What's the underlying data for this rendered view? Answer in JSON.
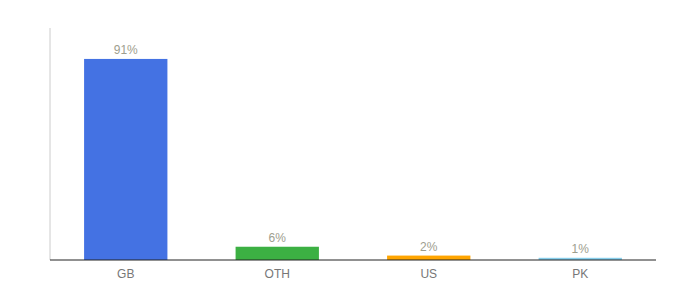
{
  "chart_data": {
    "type": "bar",
    "categories": [
      "GB",
      "OTH",
      "US",
      "PK"
    ],
    "values": [
      91,
      6,
      2,
      1
    ],
    "value_labels": [
      "91%",
      "6%",
      "2%",
      "1%"
    ],
    "colors": [
      "#4472E3",
      "#3CB043",
      "#FFA500",
      "#87CEEB"
    ],
    "ylim": [
      0,
      105
    ],
    "grid": false,
    "data_labels": true,
    "tick_labels": "x"
  }
}
